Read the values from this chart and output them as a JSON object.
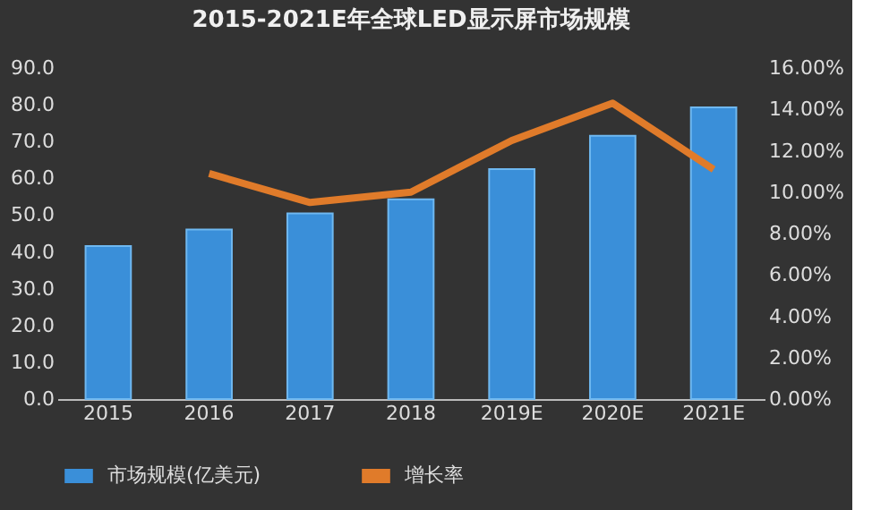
{
  "chart_data": {
    "type": "bar",
    "title": "2015-2021E年全球LED显示屏市场规模",
    "categories": [
      "2015",
      "2016",
      "2017",
      "2018",
      "2019E",
      "2020E",
      "2021E"
    ],
    "series": [
      {
        "name": "市场规模(亿美元)",
        "color": "#3a8fd9",
        "values": [
          41.6,
          46.1,
          50.5,
          54.3,
          62.5,
          71.6,
          79.3
        ]
      },
      {
        "name": "增长率",
        "type": "line",
        "axis": "y2",
        "color": "#e07b2a",
        "values": [
          null,
          10.9,
          9.5,
          10.0,
          12.5,
          14.3,
          11.1
        ]
      }
    ],
    "ylim": [
      0,
      90
    ],
    "yticks": [
      {
        "value": 0,
        "label": "0.0"
      },
      {
        "value": 10,
        "label": "10.0"
      },
      {
        "value": 20,
        "label": "20.0"
      },
      {
        "value": 30,
        "label": "30.0"
      },
      {
        "value": 40,
        "label": "40.0"
      },
      {
        "value": 50,
        "label": "50.0"
      },
      {
        "value": 60,
        "label": "60.0"
      },
      {
        "value": 70,
        "label": "70.0"
      },
      {
        "value": 80,
        "label": "80.0"
      },
      {
        "value": 90,
        "label": "90.0"
      }
    ],
    "y2lim": [
      0,
      16
    ],
    "y2ticks": [
      {
        "value": 0,
        "label": "0.00%"
      },
      {
        "value": 2,
        "label": "2.00%"
      },
      {
        "value": 4,
        "label": "4.00%"
      },
      {
        "value": 6,
        "label": "6.00%"
      },
      {
        "value": 8,
        "label": "8.00%"
      },
      {
        "value": 10,
        "label": "10.00%"
      },
      {
        "value": 12,
        "label": "12.00%"
      },
      {
        "value": 14,
        "label": "14.00%"
      },
      {
        "value": 16,
        "label": "16.00%"
      }
    ],
    "grid": false,
    "legend": "bottom",
    "line_style": "solid",
    "marker": "none"
  }
}
